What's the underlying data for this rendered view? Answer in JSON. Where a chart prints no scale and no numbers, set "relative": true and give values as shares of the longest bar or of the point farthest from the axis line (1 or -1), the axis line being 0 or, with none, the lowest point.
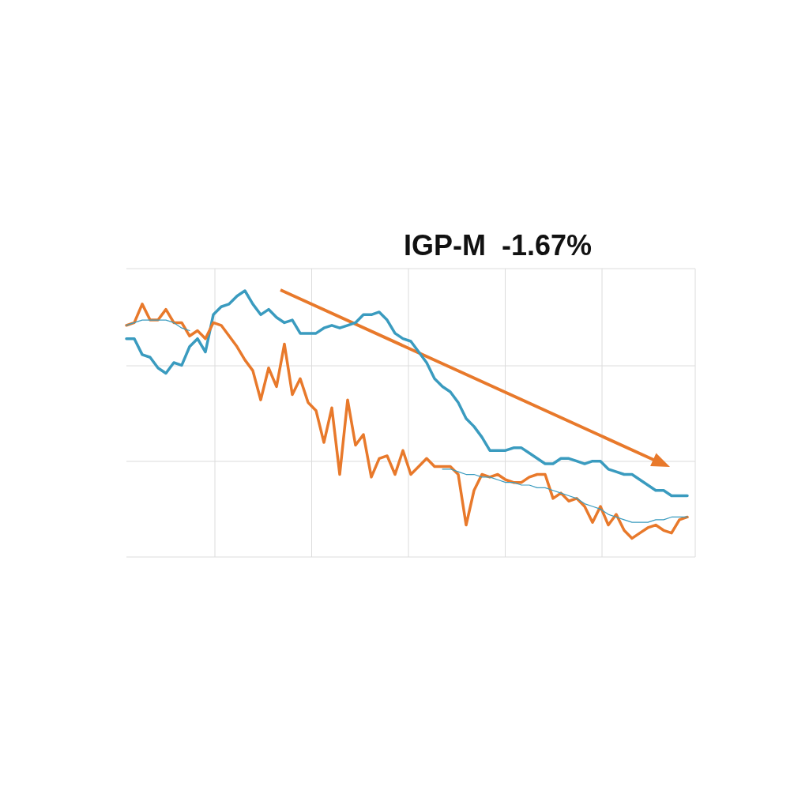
{
  "chart_data": {
    "type": "line",
    "title": "IGP-M  -1.67%",
    "relative": true,
    "grid": true,
    "marker": "none",
    "line_style": "solid",
    "categories": [
      null,
      null,
      null,
      null,
      null,
      null,
      null,
      null,
      null,
      null,
      null,
      null,
      null,
      null,
      null,
      null,
      null,
      null,
      null,
      null,
      null,
      null,
      null,
      null,
      null,
      null,
      null,
      null,
      null,
      null,
      null,
      null,
      null,
      null,
      null,
      null,
      null,
      null,
      null,
      null,
      null,
      null,
      null,
      null,
      null,
      null,
      null,
      null,
      null,
      null,
      null,
      null,
      null,
      null,
      null,
      null,
      null,
      null,
      null,
      null,
      null,
      null,
      null,
      null,
      null,
      null,
      null,
      null,
      null,
      null,
      null,
      null
    ],
    "series": [
      {
        "color": "#3a9bbf",
        "values": [
          0.82,
          0.82,
          0.76,
          0.75,
          0.71,
          0.69,
          0.73,
          0.72,
          0.79,
          0.82,
          0.77,
          0.91,
          0.94,
          0.95,
          0.98,
          1.0,
          0.95,
          0.91,
          0.93,
          0.9,
          0.88,
          0.89,
          0.84,
          0.84,
          0.84,
          0.86,
          0.87,
          0.86,
          0.87,
          0.88,
          0.91,
          0.91,
          0.92,
          0.89,
          0.84,
          0.82,
          0.81,
          0.77,
          0.73,
          0.67,
          0.64,
          0.62,
          0.58,
          0.52,
          0.49,
          0.45,
          0.4,
          0.4,
          0.4,
          0.41,
          0.41,
          0.39,
          0.37,
          0.35,
          0.35,
          0.37,
          0.37,
          0.36,
          0.35,
          0.36,
          0.36,
          0.33,
          0.32,
          0.31,
          0.31,
          0.29,
          0.27,
          0.25,
          0.25,
          0.23,
          0.23,
          0.23
        ]
      },
      {
        "color": "#e8792b",
        "values": [
          0.87,
          0.88,
          0.95,
          0.89,
          0.89,
          0.93,
          0.88,
          0.88,
          0.83,
          0.85,
          0.82,
          0.88,
          0.87,
          0.83,
          0.79,
          0.74,
          0.7,
          0.59,
          0.71,
          0.64,
          0.8,
          0.61,
          0.67,
          0.58,
          0.55,
          0.43,
          0.56,
          0.31,
          0.59,
          0.42,
          0.46,
          0.3,
          0.37,
          0.38,
          0.31,
          0.4,
          0.31,
          0.34,
          0.37,
          0.34,
          0.34,
          0.34,
          0.31,
          0.12,
          0.25,
          0.31,
          0.3,
          0.31,
          0.29,
          0.28,
          0.28,
          0.3,
          0.31,
          0.31,
          0.22,
          0.24,
          0.21,
          0.22,
          0.19,
          0.13,
          0.19,
          0.12,
          0.16,
          0.1,
          0.07,
          0.09,
          0.11,
          0.12,
          0.1,
          0.09,
          0.14,
          0.15
        ]
      },
      {
        "color": "#3a9bbf",
        "values": [
          0.87,
          0.88,
          0.89,
          0.89,
          0.89,
          0.89,
          0.88,
          0.86,
          0.85,
          null,
          null,
          null,
          null,
          null,
          null,
          null,
          null,
          null,
          null,
          null,
          null,
          null,
          null,
          null,
          null,
          null,
          null,
          null,
          null,
          null,
          null,
          null,
          null,
          null,
          null,
          null,
          null,
          null,
          null,
          null,
          0.33,
          0.33,
          0.32,
          0.31,
          0.31,
          0.3,
          0.3,
          0.29,
          0.28,
          0.28,
          0.27,
          0.27,
          0.26,
          0.26,
          0.25,
          0.24,
          0.23,
          0.22,
          0.2,
          0.19,
          0.18,
          0.16,
          0.15,
          0.14,
          0.13,
          0.13,
          0.13,
          0.14,
          0.14,
          0.15,
          0.15,
          0.15
        ]
      }
    ]
  }
}
